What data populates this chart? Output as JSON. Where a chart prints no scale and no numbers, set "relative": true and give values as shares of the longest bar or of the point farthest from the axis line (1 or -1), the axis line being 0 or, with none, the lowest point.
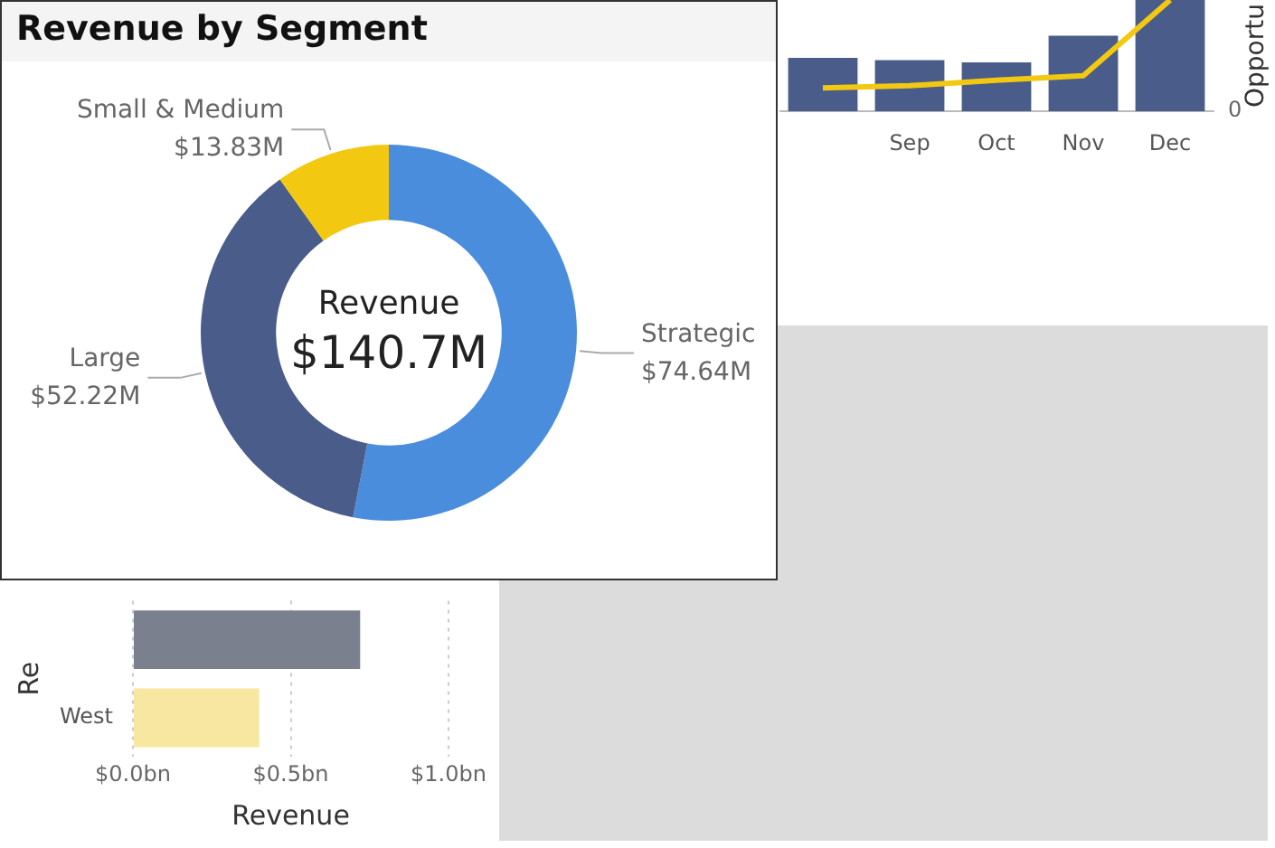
{
  "chart_data": [
    {
      "type": "donut",
      "title": "Revenue by Segment",
      "categories": [
        "Strategic",
        "Large",
        "Small & Medium"
      ],
      "values": [
        74.64,
        52.22,
        13.83
      ],
      "colors": [
        "#4a8ddc",
        "#4a5c8a",
        "#f2c811"
      ],
      "value_labels": [
        "$74.64M",
        "$52.22M",
        "$13.83M"
      ],
      "annotations": [
        "Revenue",
        "$140.7M"
      ]
    },
    {
      "type": "bar",
      "categories": [
        null,
        "Sep",
        "Oct",
        "Nov",
        "Dec"
      ],
      "relative": true,
      "y2label": "Opportu",
      "annotations": [
        "0"
      ],
      "series": [
        {
          "type": "bar",
          "color": "#4a5c8a",
          "values": [
            0.48,
            0.46,
            0.44,
            0.68,
            1
          ]
        },
        {
          "type": "line",
          "color": "#f2c811",
          "values": [
            0.21,
            0.23,
            0.28,
            0.32,
            1
          ]
        }
      ]
    },
    {
      "type": "bar",
      "orientation": "horizontal",
      "categories": [
        null,
        "West"
      ],
      "values": [
        0.72,
        0.4
      ],
      "colors": [
        "#7a808d",
        "#f8e7a0"
      ],
      "xlim": [
        0,
        1
      ],
      "xticks": [
        {
          "value": 0,
          "label": "$0.0bn"
        },
        {
          "value": 0.5,
          "label": "$0.5bn"
        },
        {
          "value": 1,
          "label": "$1.0bn"
        }
      ],
      "grid": "x",
      "xlabel": "Revenue",
      "ylabel": "Re"
    }
  ]
}
